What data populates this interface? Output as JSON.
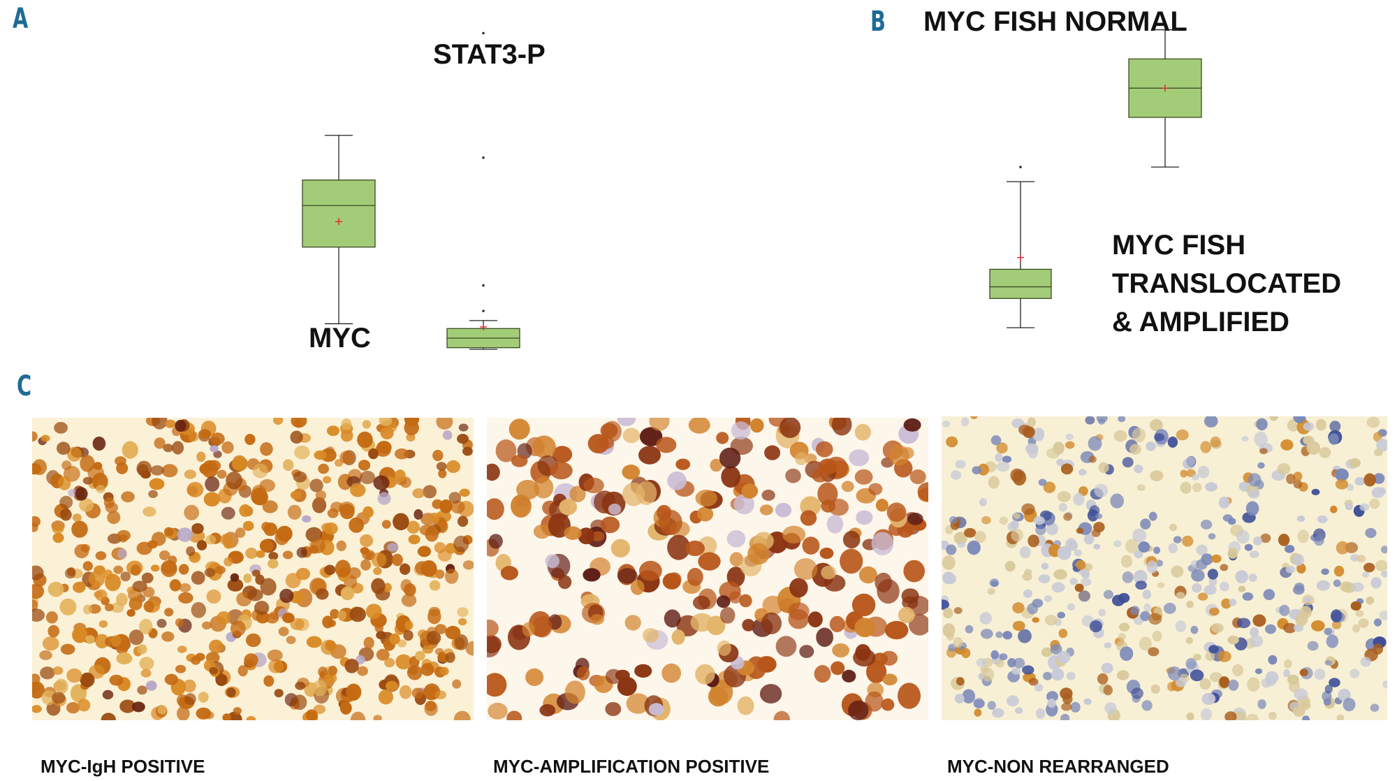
{
  "panels": {
    "a": {
      "letter": "A",
      "label_myc": "MYC",
      "label_stat3": "STAT3-P"
    },
    "b": {
      "letter": "B",
      "label_normal": "MYC FISH NORMAL",
      "label_translocated_line1": "MYC FISH",
      "label_translocated_line2": "TRANSLOCATED",
      "label_translocated_line3": "& AMPLIFIED"
    },
    "c": {
      "letter": "C",
      "images": [
        {
          "caption": "MYC-IgH POSITIVE",
          "stain": "strong-diffuse"
        },
        {
          "caption": "MYC-AMPLIFICATION POSITIVE",
          "stain": "strong-large-nuclei"
        },
        {
          "caption": "MYC-NON REARRANGED",
          "stain": "weak-hematoxylin"
        }
      ]
    }
  },
  "colors": {
    "panel_letter": "#1f6b97",
    "box_fill": "#a3cc78",
    "box_stroke": "#3a4a22",
    "mean_marker": "#e2232a"
  },
  "chart_data": [
    {
      "type": "box",
      "panel": "A",
      "series": [
        {
          "name": "MYC",
          "whisker_low": 8,
          "q1": 32,
          "median": 45,
          "q3": 53,
          "whisker_high": 67,
          "mean": 40,
          "outliers": []
        },
        {
          "name": "STAT3-P",
          "whisker_low": 0,
          "q1": 0.5,
          "median": 3.5,
          "q3": 6.5,
          "whisker_high": 9,
          "mean": 7,
          "outliers": [
            12,
            20,
            60,
            99
          ]
        }
      ],
      "ylim": [
        0,
        105
      ],
      "grid": false
    },
    {
      "type": "box",
      "panel": "B",
      "series": [
        {
          "name": "MYC FISH NORMAL",
          "whisker_low": 5,
          "q1": 15,
          "median": 19,
          "q3": 25,
          "whisker_high": 55,
          "mean": 29,
          "outliers": [
            60
          ]
        },
        {
          "name": "MYC FISH TRANSLOCATED & AMPLIFIED",
          "whisker_low": 60,
          "q1": 77,
          "median": 87,
          "q3": 97,
          "whisker_high": 107,
          "mean": 87,
          "outliers": []
        }
      ],
      "ylim": [
        0,
        110
      ],
      "grid": false
    }
  ]
}
